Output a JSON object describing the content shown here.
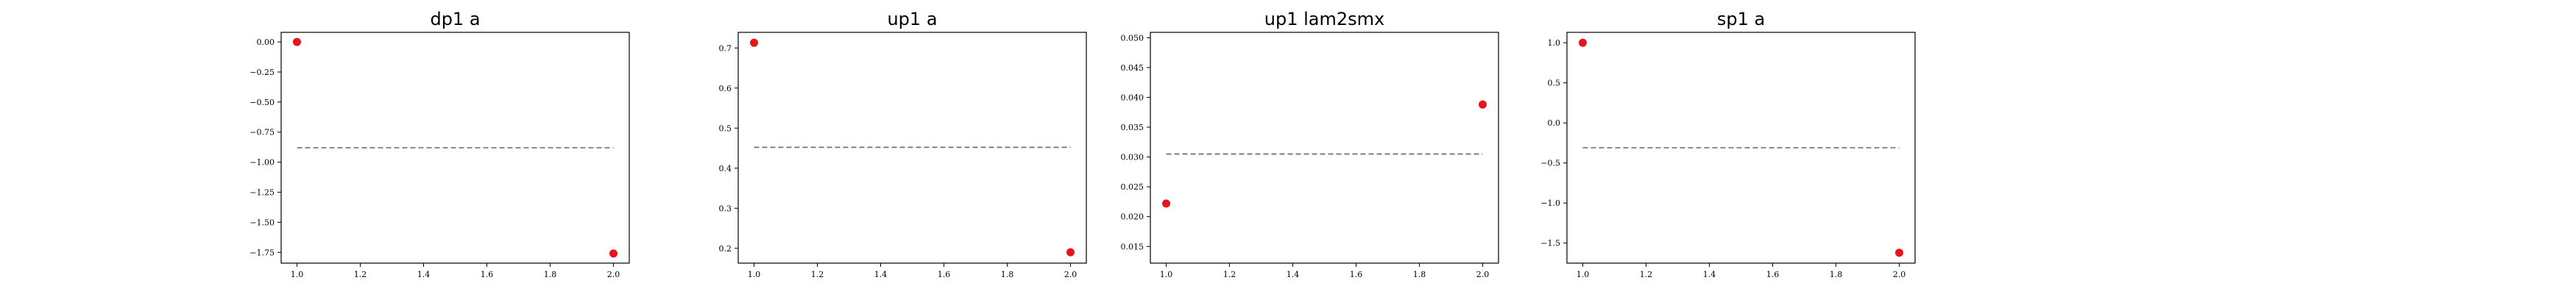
{
  "chart_data": [
    {
      "type": "scatter",
      "title": "dp1 a",
      "points": [
        {
          "x": 1.0,
          "y": 0.0
        },
        {
          "x": 2.0,
          "y": -1.76
        }
      ],
      "reference_line": {
        "y": -0.88,
        "x_range": [
          1.0,
          2.0
        ],
        "style": "dashed"
      },
      "xlim": [
        0.95,
        2.05
      ],
      "ylim": [
        -1.84,
        0.08
      ],
      "xticks": [
        1.0,
        1.2,
        1.4,
        1.6,
        1.8,
        2.0
      ],
      "xtick_labels": [
        "1.0",
        "1.2",
        "1.4",
        "1.6",
        "1.8",
        "2.0"
      ],
      "yticks": [
        0.0,
        -0.25,
        -0.5,
        -0.75,
        -1.0,
        -1.25,
        -1.5,
        -1.75
      ],
      "ytick_labels": [
        "0.00",
        "−0.25",
        "−0.50",
        "−0.75",
        "−1.00",
        "−1.25",
        "−1.50",
        "−1.75"
      ],
      "grid": false,
      "point_color": "#e8141c",
      "line_color": "#666666"
    },
    {
      "type": "scatter",
      "title": "up1 a",
      "points": [
        {
          "x": 1.0,
          "y": 0.713
        },
        {
          "x": 2.0,
          "y": 0.19
        }
      ],
      "reference_line": {
        "y": 0.452,
        "x_range": [
          1.0,
          2.0
        ],
        "style": "dashed"
      },
      "xlim": [
        0.95,
        2.05
      ],
      "ylim": [
        0.163,
        0.739
      ],
      "xticks": [
        1.0,
        1.2,
        1.4,
        1.6,
        1.8,
        2.0
      ],
      "xtick_labels": [
        "1.0",
        "1.2",
        "1.4",
        "1.6",
        "1.8",
        "2.0"
      ],
      "yticks": [
        0.2,
        0.3,
        0.4,
        0.5,
        0.6,
        0.7
      ],
      "ytick_labels": [
        "0.2",
        "0.3",
        "0.4",
        "0.5",
        "0.6",
        "0.7"
      ],
      "grid": false,
      "point_color": "#e8141c",
      "line_color": "#666666"
    },
    {
      "type": "scatter",
      "title": "up1 lam2smx",
      "points": [
        {
          "x": 1.0,
          "y": 0.0222
        },
        {
          "x": 2.0,
          "y": 0.0388
        }
      ],
      "reference_line": {
        "y": 0.0305,
        "x_range": [
          1.0,
          2.0
        ],
        "style": "dashed"
      },
      "xlim": [
        0.95,
        2.05
      ],
      "ylim": [
        0.0122,
        0.0509
      ],
      "xticks": [
        1.0,
        1.2,
        1.4,
        1.6,
        1.8,
        2.0
      ],
      "xtick_labels": [
        "1.0",
        "1.2",
        "1.4",
        "1.6",
        "1.8",
        "2.0"
      ],
      "yticks": [
        0.015,
        0.02,
        0.025,
        0.03,
        0.035,
        0.04,
        0.045,
        0.05
      ],
      "ytick_labels": [
        "0.015",
        "0.020",
        "0.025",
        "0.030",
        "0.035",
        "0.040",
        "0.045",
        "0.050"
      ],
      "grid": false,
      "point_color": "#e8141c",
      "line_color": "#666666"
    },
    {
      "type": "scatter",
      "title": "sp1 a",
      "points": [
        {
          "x": 1.0,
          "y": 1.0
        },
        {
          "x": 2.0,
          "y": -1.62
        }
      ],
      "reference_line": {
        "y": -0.31,
        "x_range": [
          1.0,
          2.0
        ],
        "style": "dashed"
      },
      "xlim": [
        0.95,
        2.05
      ],
      "ylim": [
        -1.75,
        1.13
      ],
      "xticks": [
        1.0,
        1.2,
        1.4,
        1.6,
        1.8,
        2.0
      ],
      "xtick_labels": [
        "1.0",
        "1.2",
        "1.4",
        "1.6",
        "1.8",
        "2.0"
      ],
      "yticks": [
        1.0,
        0.5,
        0.0,
        -0.5,
        -1.0,
        -1.5
      ],
      "ytick_labels": [
        "1.0",
        "0.5",
        "0.0",
        "−0.5",
        "−1.0",
        "−1.5"
      ],
      "grid": false,
      "point_color": "#e8141c",
      "line_color": "#666666"
    }
  ]
}
